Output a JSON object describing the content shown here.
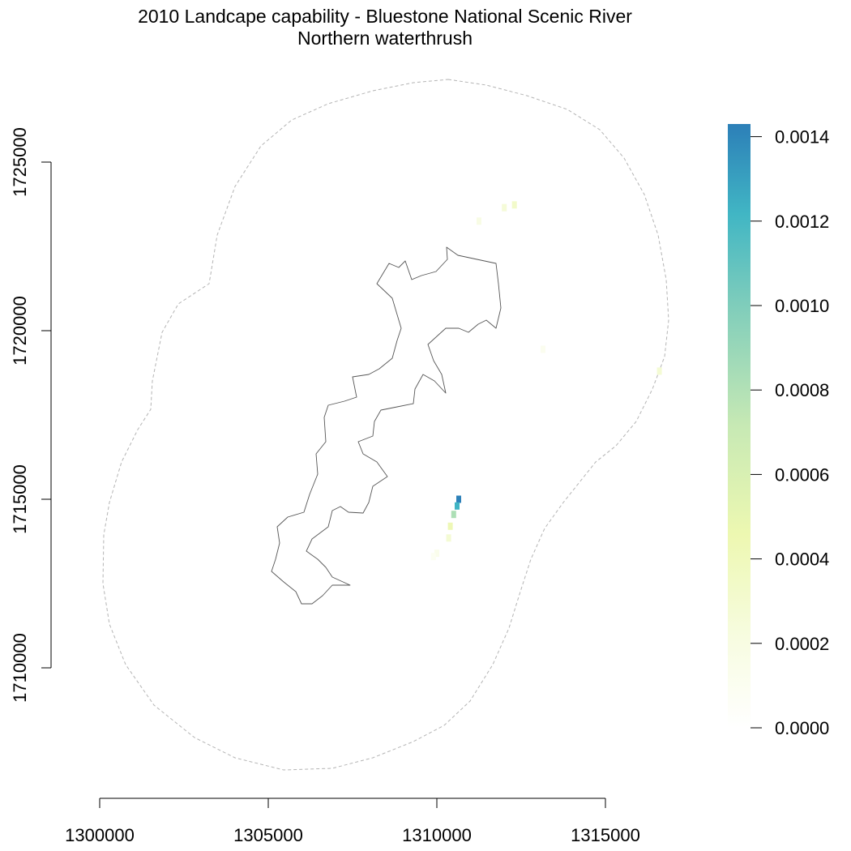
{
  "title": "2010 Landcape capability - Bluestone National Scenic River",
  "subtitle": "Northern waterthrush",
  "x_axis": {
    "ticks": [
      1300000,
      1305000,
      1310000,
      1315000
    ],
    "range": [
      1300000,
      1315000
    ]
  },
  "y_axis": {
    "ticks": [
      1710000,
      1715000,
      1720000,
      1725000
    ],
    "range": [
      1710000,
      1725000
    ]
  },
  "legend": {
    "ticks": [
      "0.0000",
      "0.0002",
      "0.0004",
      "0.0006",
      "0.0008",
      "0.0010",
      "0.0012",
      "0.0014"
    ],
    "min": 0,
    "max": 0.00143,
    "palette": [
      "#ffffff",
      "#f7fce0",
      "#edf8b1",
      "#c7e9b4",
      "#7fcdbb",
      "#41b6c4",
      "#2c7fb8"
    ]
  },
  "layers": {
    "buffer_boundary": {
      "style": "dashed",
      "color": "#b4b4b4"
    },
    "park_boundary": {
      "color": "#555555"
    }
  },
  "capability_patches": [
    {
      "x": 1312300,
      "y": 1723730,
      "value": 0.00035
    },
    {
      "x": 1312000,
      "y": 1723650,
      "value": 0.00028
    },
    {
      "x": 1311250,
      "y": 1723250,
      "value": 0.0002
    },
    {
      "x": 1313150,
      "y": 1719450,
      "value": 0.00012
    },
    {
      "x": 1316600,
      "y": 1718800,
      "value": 0.0003
    },
    {
      "x": 1310650,
      "y": 1715000,
      "value": 0.00142
    },
    {
      "x": 1310600,
      "y": 1714800,
      "value": 0.0012
    },
    {
      "x": 1310500,
      "y": 1714550,
      "value": 0.0008
    },
    {
      "x": 1310400,
      "y": 1714200,
      "value": 0.00045
    },
    {
      "x": 1310350,
      "y": 1713850,
      "value": 0.0003
    },
    {
      "x": 1310000,
      "y": 1713400,
      "value": 0.00015
    },
    {
      "x": 1309900,
      "y": 1713300,
      "value": 0.0001
    }
  ]
}
